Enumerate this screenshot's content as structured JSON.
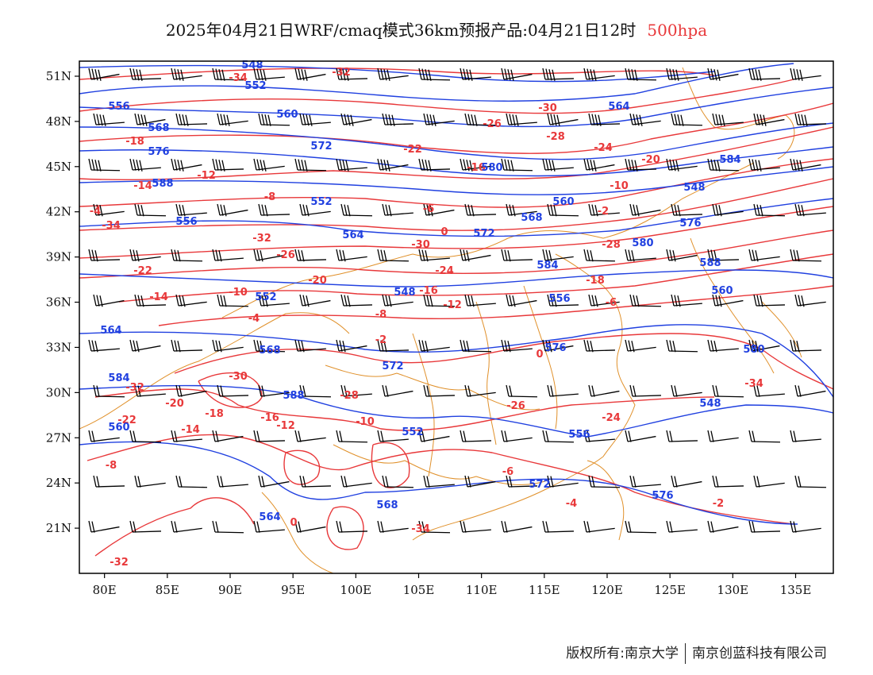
{
  "title": {
    "main": "2025年04月21日WRF/cmaq模式36km预报产品:04月21日12时",
    "level": "500hpa",
    "level_color": "#e8383a"
  },
  "colors": {
    "temperature": "#e8383a",
    "geopotential": "#2040e0",
    "border": "#e0902a",
    "wind": "#000000"
  },
  "axes": {
    "lon_labels": [
      "80E",
      "85E",
      "90E",
      "95E",
      "100E",
      "105E",
      "110E",
      "115E",
      "120E",
      "125E",
      "130E",
      "135E"
    ],
    "lat_labels": [
      "51N",
      "48N",
      "45N",
      "42N",
      "39N",
      "36N",
      "33N",
      "30N",
      "27N",
      "24N",
      "21N"
    ]
  },
  "chart_data": {
    "type": "map",
    "lon_range": [
      78,
      138
    ],
    "lat_range": [
      18,
      52
    ],
    "temperature_labels": [
      "-34",
      "-32",
      "-30",
      "-28",
      "-26",
      "-24",
      "-22",
      "-20",
      "-18",
      "-16",
      "-14",
      "-12",
      "-10",
      "-8",
      "-6",
      "-4",
      "-2",
      "0"
    ],
    "height_labels": [
      "548",
      "552",
      "556",
      "560",
      "564",
      "568",
      "572",
      "576",
      "580",
      "584",
      "588"
    ]
  },
  "footer": {
    "left": "版权所有:南京大学",
    "right": "南京创蓝科技有限公司"
  }
}
